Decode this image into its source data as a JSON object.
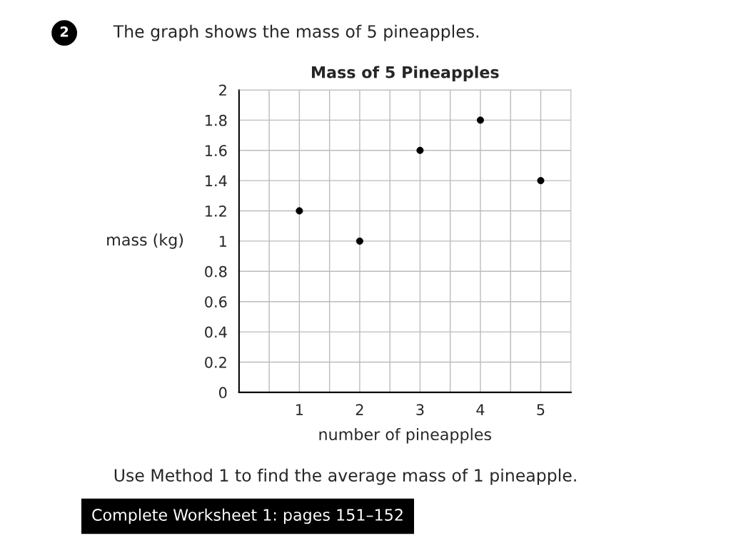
{
  "chart_data": {
    "type": "scatter",
    "title": "Mass of 5 Pineapples",
    "xlabel": "number of pineapples",
    "ylabel": "mass (kg)",
    "annotations": [
      "2",
      "The graph shows the mass of 5 pineapples.",
      "Use Method 1 to find the average mass of 1 pineapple.",
      "Complete Worksheet 1: pages 151–152"
    ],
    "x": [
      1,
      2,
      3,
      4,
      5
    ],
    "values": [
      1.2,
      1,
      1.6,
      1.8,
      1.4
    ],
    "color": "#000000",
    "marker": "circle",
    "xlim": [
      0,
      5.5
    ],
    "xticks": [
      {
        "value": 0.5,
        "label": null
      },
      1,
      {
        "value": 1.5,
        "label": null
      },
      2,
      {
        "value": 2.5,
        "label": null
      },
      3,
      {
        "value": 3.5,
        "label": null
      },
      4,
      {
        "value": 4.5,
        "label": null
      },
      5
    ],
    "ylim": [
      0,
      2
    ],
    "yticks": [
      0,
      0.2,
      0.4,
      0.6,
      0.8,
      1,
      1.2,
      1.4,
      1.6,
      1.8,
      2
    ],
    "grid": true,
    "legend": false
  }
}
